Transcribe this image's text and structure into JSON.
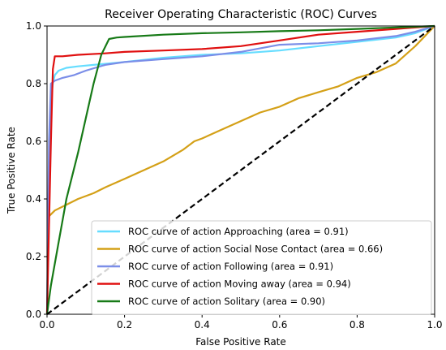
{
  "chart_data": {
    "type": "line",
    "title": "Receiver Operating Characteristic (ROC) Curves",
    "xlabel": "False Positive Rate",
    "ylabel": "True Positive Rate",
    "xlim": [
      0.0,
      1.0
    ],
    "ylim": [
      0.0,
      1.0
    ],
    "xticks": [
      "0.0",
      "0.2",
      "0.4",
      "0.6",
      "0.8",
      "1.0"
    ],
    "yticks": [
      "0.0",
      "0.2",
      "0.4",
      "0.6",
      "0.8",
      "1.0"
    ],
    "grid": false,
    "legend_position": "lower-right",
    "series": [
      {
        "name": "ROC curve of action Approaching (area = 0.91)",
        "color": "#66ddff",
        "x": [
          0,
          0.005,
          0.01,
          0.015,
          0.02,
          0.03,
          0.05,
          0.08,
          0.12,
          0.2,
          0.3,
          0.4,
          0.5,
          0.6,
          0.7,
          0.8,
          0.9,
          0.95,
          1.0
        ],
        "y": [
          0,
          0.5,
          0.75,
          0.8,
          0.83,
          0.845,
          0.855,
          0.86,
          0.865,
          0.875,
          0.89,
          0.9,
          0.905,
          0.915,
          0.93,
          0.945,
          0.96,
          0.975,
          1.0
        ]
      },
      {
        "name": "ROC curve of action Social Nose Contact (area = 0.66)",
        "color": "#d4a017",
        "x": [
          0,
          0.003,
          0.005,
          0.02,
          0.05,
          0.08,
          0.12,
          0.15,
          0.2,
          0.25,
          0.3,
          0.35,
          0.38,
          0.4,
          0.45,
          0.5,
          0.55,
          0.6,
          0.65,
          0.7,
          0.75,
          0.8,
          0.85,
          0.9,
          0.95,
          1.0
        ],
        "y": [
          0,
          0.3,
          0.34,
          0.36,
          0.38,
          0.4,
          0.42,
          0.44,
          0.47,
          0.5,
          0.53,
          0.57,
          0.6,
          0.61,
          0.64,
          0.67,
          0.7,
          0.72,
          0.75,
          0.77,
          0.79,
          0.82,
          0.84,
          0.87,
          0.93,
          1.0
        ]
      },
      {
        "name": "ROC curve of action Following (area = 0.91)",
        "color": "#7b8ee8",
        "x": [
          0,
          0.005,
          0.01,
          0.02,
          0.04,
          0.07,
          0.1,
          0.15,
          0.2,
          0.3,
          0.4,
          0.5,
          0.6,
          0.7,
          0.8,
          0.9,
          0.95,
          1.0
        ],
        "y": [
          0,
          0.6,
          0.8,
          0.81,
          0.82,
          0.83,
          0.845,
          0.865,
          0.875,
          0.885,
          0.895,
          0.91,
          0.935,
          0.94,
          0.95,
          0.965,
          0.98,
          1.0
        ]
      },
      {
        "name": "ROC curve of action Moving away (area = 0.94)",
        "color": "#e01010",
        "x": [
          0,
          0.005,
          0.01,
          0.015,
          0.02,
          0.04,
          0.08,
          0.15,
          0.2,
          0.3,
          0.4,
          0.5,
          0.6,
          0.7,
          0.8,
          0.9,
          1.0
        ],
        "y": [
          0,
          0.3,
          0.6,
          0.85,
          0.895,
          0.895,
          0.9,
          0.905,
          0.91,
          0.915,
          0.92,
          0.93,
          0.95,
          0.97,
          0.98,
          0.99,
          1.0
        ]
      },
      {
        "name": "ROC curve of action Solitary (area = 0.90)",
        "color": "#177a17",
        "x": [
          0,
          0.01,
          0.03,
          0.05,
          0.08,
          0.1,
          0.12,
          0.14,
          0.16,
          0.18,
          0.2,
          0.3,
          0.4,
          0.5,
          0.6,
          0.7,
          0.8,
          0.9,
          1.0
        ],
        "y": [
          0,
          0.1,
          0.25,
          0.4,
          0.56,
          0.68,
          0.8,
          0.9,
          0.955,
          0.96,
          0.962,
          0.97,
          0.975,
          0.978,
          0.982,
          0.985,
          0.99,
          0.995,
          1.0
        ]
      },
      {
        "name": "",
        "color": "#000000",
        "dashed": true,
        "x": [
          0,
          1
        ],
        "y": [
          0,
          1
        ]
      }
    ]
  }
}
